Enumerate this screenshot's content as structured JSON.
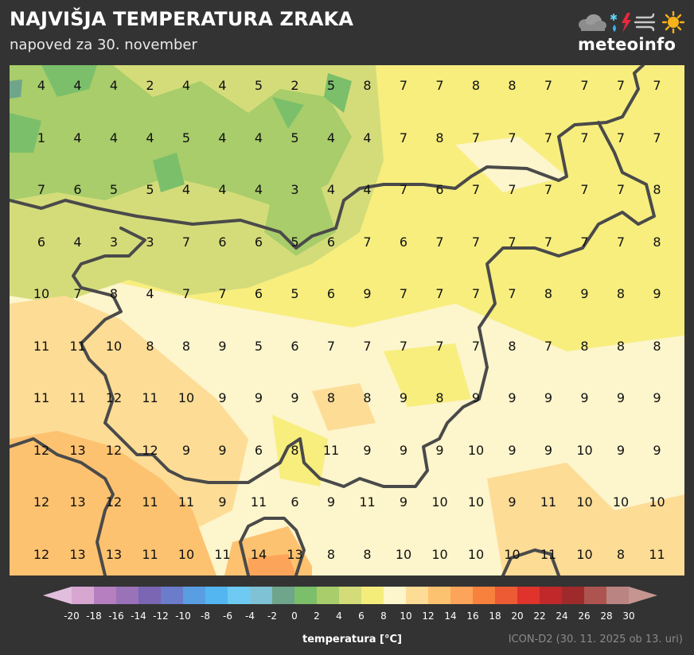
{
  "header": {
    "title": "NAJVIŠJA TEMPERATURA ZRAKA",
    "subtitle": "napoved za 30. november"
  },
  "logo": {
    "text": "meteoinfo",
    "icons": [
      "cloud-icon",
      "snow-rain-icon",
      "lightning-icon",
      "wind-icon",
      "sun-icon"
    ]
  },
  "map": {
    "grid": [
      [
        4,
        4,
        4,
        2,
        4,
        4,
        5,
        2,
        5,
        8,
        7,
        7,
        8,
        8,
        7,
        7,
        7,
        7
      ],
      [
        1,
        4,
        4,
        4,
        5,
        4,
        4,
        5,
        4,
        4,
        7,
        8,
        7,
        7,
        7,
        7,
        7,
        7
      ],
      [
        7,
        6,
        5,
        5,
        4,
        4,
        4,
        3,
        4,
        4,
        7,
        6,
        7,
        7,
        7,
        7,
        7,
        8
      ],
      [
        6,
        4,
        3,
        3,
        7,
        6,
        6,
        5,
        6,
        7,
        6,
        7,
        7,
        7,
        7,
        7,
        7,
        8
      ],
      [
        10,
        7,
        8,
        4,
        7,
        7,
        6,
        5,
        6,
        9,
        7,
        7,
        7,
        7,
        8,
        9,
        8,
        9
      ],
      [
        11,
        11,
        10,
        8,
        8,
        9,
        5,
        6,
        7,
        7,
        7,
        7,
        7,
        8,
        7,
        8,
        8,
        8
      ],
      [
        11,
        11,
        12,
        11,
        10,
        9,
        9,
        9,
        8,
        8,
        9,
        8,
        9,
        9,
        9,
        9,
        9,
        9
      ],
      [
        12,
        13,
        12,
        12,
        9,
        9,
        6,
        8,
        11,
        9,
        9,
        9,
        10,
        9,
        9,
        10,
        9,
        9
      ],
      [
        12,
        13,
        12,
        11,
        11,
        9,
        11,
        6,
        9,
        11,
        9,
        10,
        10,
        9,
        11,
        10,
        10,
        10
      ],
      [
        12,
        13,
        13,
        11,
        10,
        11,
        14,
        13,
        8,
        8,
        10,
        10,
        10,
        10,
        11,
        10,
        8,
        11
      ]
    ]
  },
  "legend": {
    "title": "temperatura [°C]",
    "ticks": [
      "-20",
      "-18",
      "-16",
      "-14",
      "-12",
      "-10",
      "-8",
      "-6",
      "-4",
      "-2",
      "0",
      "2",
      "4",
      "6",
      "8",
      "10",
      "12",
      "14",
      "16",
      "18",
      "20",
      "22",
      "24",
      "26",
      "28",
      "30"
    ],
    "colors": [
      "#d7a6d1",
      "#b57fc0",
      "#9a72b8",
      "#7a66b2",
      "#6b7ccb",
      "#5a9ee2",
      "#54b6f0",
      "#6ecaf2",
      "#7fc2d6",
      "#6fa58a",
      "#7bbf6a",
      "#a8cd6a",
      "#d4dc7a",
      "#f4ed7c",
      "#fdf5cc",
      "#fddc96",
      "#fdc270",
      "#fca55a",
      "#f8813e",
      "#ec5b34",
      "#df332b",
      "#c1282a",
      "#9e2a2c",
      "#ad5450",
      "#b98482"
    ],
    "low_arrow_color": "#e2bedd",
    "high_arrow_color": "#c59590"
  },
  "source": "ICON-D2 (30. 11. 2025 ob 13. uri)"
}
